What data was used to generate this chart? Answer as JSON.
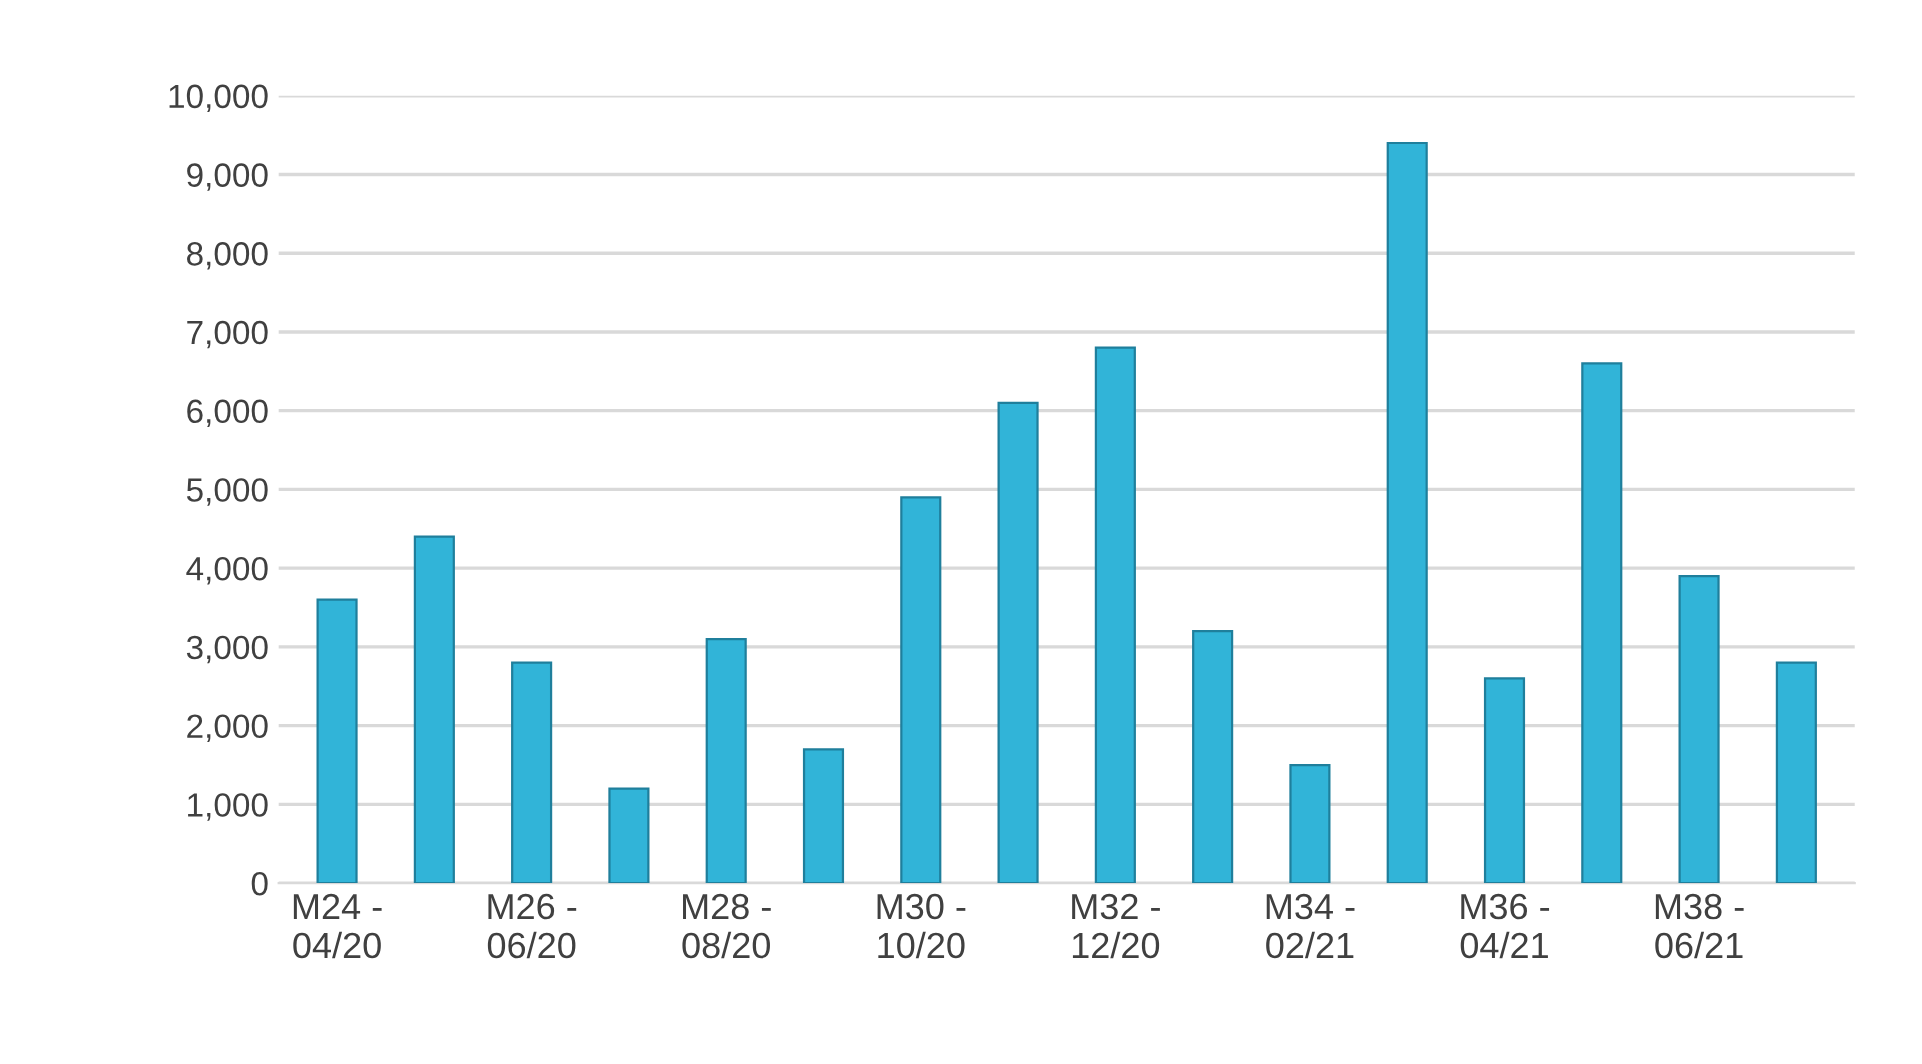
{
  "chart_data": {
    "type": "bar",
    "categories": [
      "M24 -\n04/20",
      null,
      "M26 -\n06/20",
      null,
      "M28 -\n08/20",
      null,
      "M30 -\n10/20",
      null,
      "M32 -\n12/20",
      null,
      "M34 -\n02/21",
      null,
      "M36 -\n04/21",
      null,
      "M38 -\n06/21",
      null
    ],
    "values": [
      3600,
      4400,
      2800,
      1200,
      3100,
      1700,
      4900,
      6100,
      6800,
      3200,
      1500,
      9400,
      2600,
      6600,
      3900,
      2800
    ],
    "color": "#31b4d8",
    "ylim": [
      0,
      10000
    ],
    "yticks": [
      {
        "value": 0,
        "label": "0"
      },
      {
        "value": 1000,
        "label": "1,000"
      },
      {
        "value": 2000,
        "label": "2,000"
      },
      {
        "value": 3000,
        "label": "3,000"
      },
      {
        "value": 4000,
        "label": "4,000"
      },
      {
        "value": 5000,
        "label": "5,000"
      },
      {
        "value": 6000,
        "label": "6,000"
      },
      {
        "value": 7000,
        "label": "7,000"
      },
      {
        "value": 8000,
        "label": "8,000"
      },
      {
        "value": 9000,
        "label": "9,000"
      },
      {
        "value": 10000,
        "label": "10,000"
      }
    ],
    "grid": "y"
  }
}
